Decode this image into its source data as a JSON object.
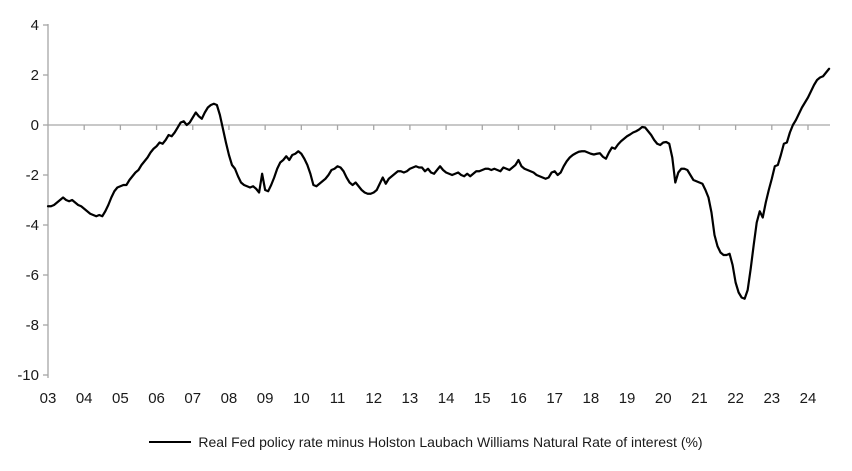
{
  "chart_data": {
    "type": "line",
    "title": "",
    "xlabel": "",
    "ylabel": "",
    "ylim": [
      -10,
      4
    ],
    "y_ticks": [
      4,
      2,
      0,
      -2,
      -4,
      -6,
      -8,
      -10
    ],
    "x_tick_labels": [
      "03",
      "04",
      "05",
      "06",
      "07",
      "08",
      "09",
      "10",
      "11",
      "12",
      "13",
      "14",
      "15",
      "16",
      "17",
      "18",
      "19",
      "20",
      "21",
      "22",
      "23",
      "24"
    ],
    "frequency": "monthly",
    "start": "2003-01",
    "end": "2024-08",
    "grid": "zero-line-only",
    "legend_position": "bottom-center",
    "axis_color": "#a6a6a6",
    "text_color": "#1a1a1a",
    "series": [
      {
        "name": "Real Fed policy rate minus Holston Laubach Williams Natural Rate of interest (%)",
        "color": "#000000",
        "values": [
          -3.25,
          -3.25,
          -3.2,
          -3.1,
          -3.0,
          -2.9,
          -3.0,
          -3.05,
          -3.0,
          -3.1,
          -3.2,
          -3.25,
          -3.35,
          -3.45,
          -3.55,
          -3.6,
          -3.65,
          -3.6,
          -3.65,
          -3.45,
          -3.2,
          -2.9,
          -2.65,
          -2.5,
          -2.45,
          -2.4,
          -2.4,
          -2.2,
          -2.05,
          -1.9,
          -1.8,
          -1.6,
          -1.45,
          -1.3,
          -1.1,
          -0.95,
          -0.85,
          -0.7,
          -0.75,
          -0.6,
          -0.4,
          -0.45,
          -0.3,
          -0.1,
          0.1,
          0.15,
          0.0,
          0.1,
          0.3,
          0.5,
          0.35,
          0.25,
          0.5,
          0.7,
          0.8,
          0.85,
          0.8,
          0.4,
          -0.15,
          -0.7,
          -1.2,
          -1.6,
          -1.75,
          -2.05,
          -2.3,
          -2.4,
          -2.45,
          -2.5,
          -2.45,
          -2.55,
          -2.7,
          -1.95,
          -2.6,
          -2.65,
          -2.4,
          -2.1,
          -1.75,
          -1.5,
          -1.4,
          -1.25,
          -1.4,
          -1.2,
          -1.15,
          -1.05,
          -1.15,
          -1.35,
          -1.6,
          -1.95,
          -2.4,
          -2.45,
          -2.35,
          -2.25,
          -2.15,
          -2.0,
          -1.8,
          -1.75,
          -1.65,
          -1.7,
          -1.85,
          -2.1,
          -2.3,
          -2.4,
          -2.3,
          -2.45,
          -2.6,
          -2.7,
          -2.75,
          -2.75,
          -2.7,
          -2.6,
          -2.35,
          -2.1,
          -2.35,
          -2.15,
          -2.05,
          -1.95,
          -1.85,
          -1.85,
          -1.9,
          -1.85,
          -1.75,
          -1.7,
          -1.65,
          -1.7,
          -1.7,
          -1.85,
          -1.75,
          -1.9,
          -1.95,
          -1.8,
          -1.65,
          -1.8,
          -1.9,
          -1.95,
          -2.0,
          -1.95,
          -1.9,
          -2.0,
          -2.05,
          -1.95,
          -2.05,
          -1.95,
          -1.85,
          -1.85,
          -1.8,
          -1.75,
          -1.75,
          -1.8,
          -1.75,
          -1.8,
          -1.85,
          -1.7,
          -1.75,
          -1.8,
          -1.7,
          -1.6,
          -1.4,
          -1.65,
          -1.75,
          -1.8,
          -1.85,
          -1.9,
          -2.0,
          -2.05,
          -2.1,
          -2.15,
          -2.1,
          -1.9,
          -1.85,
          -2.0,
          -1.9,
          -1.65,
          -1.45,
          -1.3,
          -1.2,
          -1.13,
          -1.07,
          -1.05,
          -1.05,
          -1.1,
          -1.15,
          -1.18,
          -1.15,
          -1.13,
          -1.27,
          -1.35,
          -1.1,
          -0.9,
          -0.95,
          -0.78,
          -0.65,
          -0.55,
          -0.45,
          -0.38,
          -0.3,
          -0.25,
          -0.18,
          -0.08,
          -0.1,
          -0.25,
          -0.4,
          -0.6,
          -0.75,
          -0.8,
          -0.7,
          -0.68,
          -0.75,
          -1.3,
          -2.3,
          -1.9,
          -1.75,
          -1.75,
          -1.8,
          -2.0,
          -2.2,
          -2.25,
          -2.3,
          -2.35,
          -2.6,
          -2.9,
          -3.5,
          -4.4,
          -4.85,
          -5.1,
          -5.2,
          -5.2,
          -5.15,
          -5.6,
          -6.3,
          -6.7,
          -6.9,
          -6.95,
          -6.6,
          -5.75,
          -4.8,
          -3.9,
          -3.45,
          -3.7,
          -3.1,
          -2.6,
          -2.15,
          -1.65,
          -1.6,
          -1.2,
          -0.75,
          -0.7,
          -0.3,
          0.0,
          0.2,
          0.45,
          0.7,
          0.9,
          1.1,
          1.35,
          1.6,
          1.8,
          1.9,
          1.95,
          2.1,
          2.25
        ]
      }
    ]
  },
  "legend": {
    "label": "Real Fed policy rate minus Holston Laubach Williams Natural Rate of interest (%)"
  }
}
